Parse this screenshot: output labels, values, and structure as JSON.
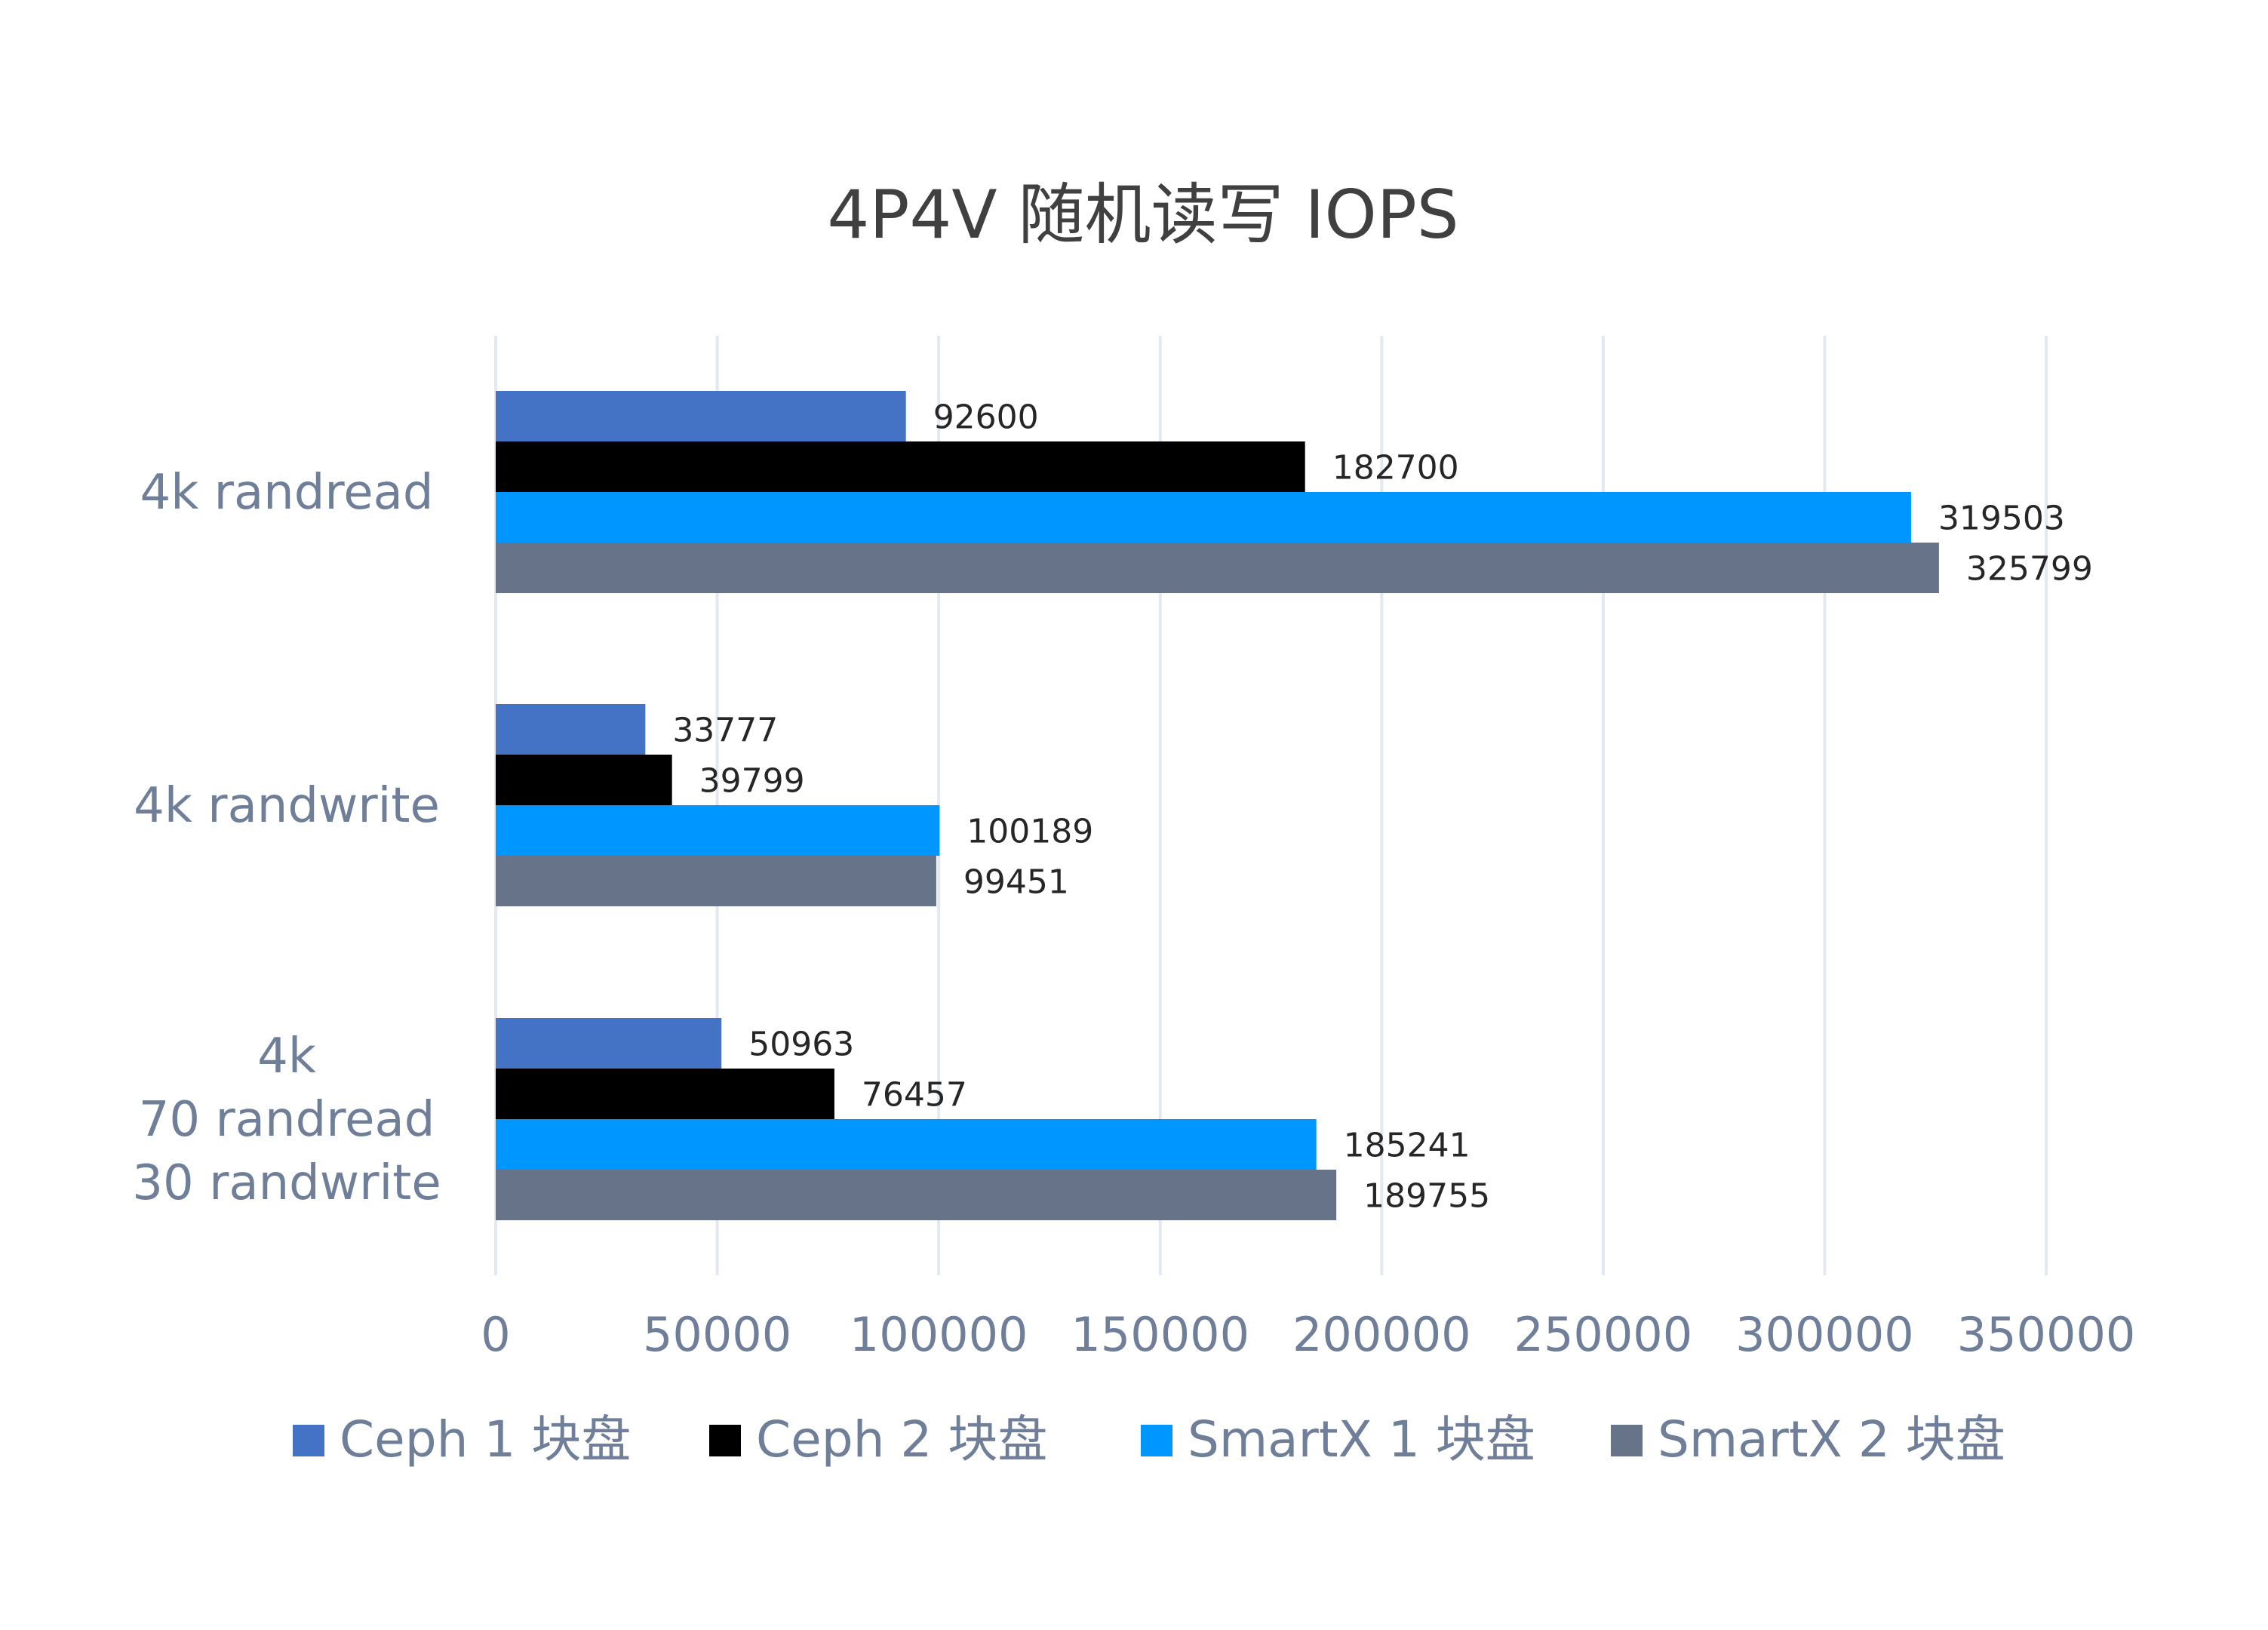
{
  "chart_data": {
    "type": "bar",
    "orientation": "horizontal",
    "title": "4P4V 随机读写 IOPS",
    "categories": [
      [
        "4k randread"
      ],
      [
        "4k randwrite"
      ],
      [
        "4k",
        "70 randread",
        "30 randwrite"
      ]
    ],
    "series": [
      {
        "name": "Ceph 1 块盘",
        "color": "#4472c4",
        "values": [
          92600,
          33777,
          50963
        ]
      },
      {
        "name": "Ceph 2 块盘",
        "color": "#000000",
        "values": [
          182700,
          39799,
          76457
        ]
      },
      {
        "name": "SmartX 1 块盘",
        "color": "#0096ff",
        "values": [
          319503,
          100189,
          185241
        ]
      },
      {
        "name": "SmartX 2 块盘",
        "color": "#667389",
        "values": [
          325799,
          99451,
          189755
        ]
      }
    ],
    "xlim": [
      0,
      350000
    ],
    "xticks": [
      "0",
      "50000",
      "100000",
      "150000",
      "200000",
      "250000",
      "300000",
      "350000"
    ],
    "grid": true,
    "data_labels": true,
    "legend": "bottom"
  }
}
